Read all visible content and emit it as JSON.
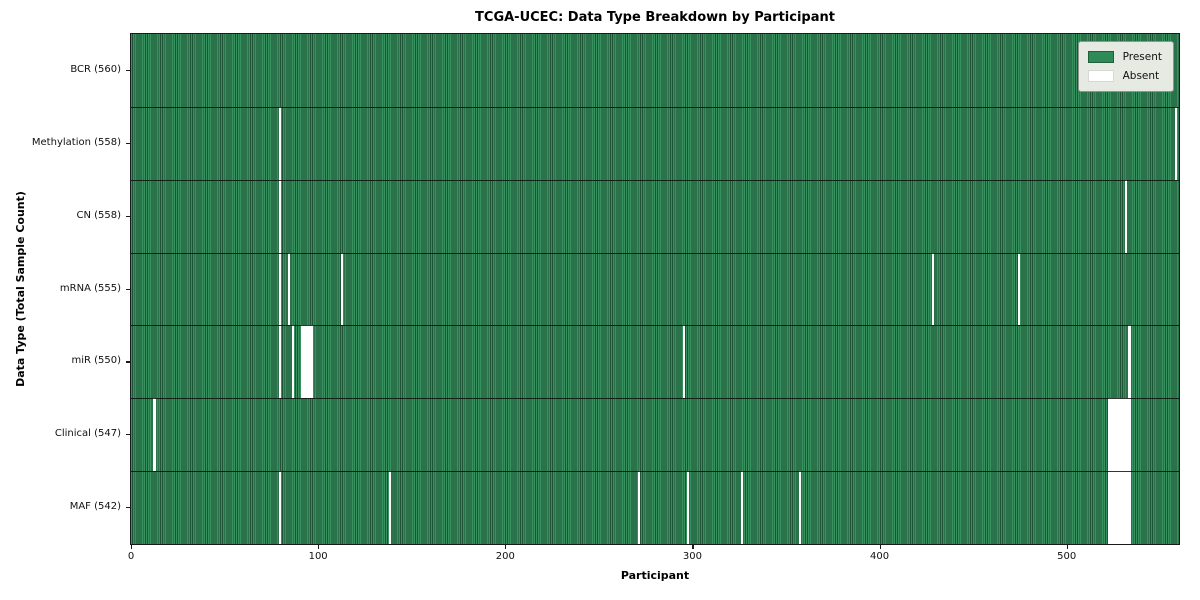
{
  "figure": {
    "title": "TCGA-UCEC: Data Type Breakdown by Participant",
    "xlabel": "Participant",
    "ylabel": "Data Type (Total Sample Count)"
  },
  "legend": {
    "present_label": "Present",
    "absent_label": "Absent",
    "present_color": "#2e8b57",
    "absent_color": "#ffffff"
  },
  "chart_data": {
    "type": "heatmap",
    "title": "TCGA-UCEC: Data Type Breakdown by Participant",
    "xlabel": "Participant",
    "ylabel": "Data Type (Total Sample Count)",
    "x_ticks": [
      0,
      100,
      200,
      300,
      400,
      500
    ],
    "x_range": [
      0,
      560
    ],
    "n_participants": 560,
    "grid": false,
    "legend_entries": [
      "Present",
      "Absent"
    ],
    "legend_position": "upper right",
    "colors": {
      "present": "#2e8b57",
      "present_dark": "#1e5335",
      "absent": "#ffffff"
    },
    "rows": [
      {
        "label": "BCR (560)",
        "data_type": "BCR",
        "present_count": 560,
        "absent_participants": []
      },
      {
        "label": "Methylation (558)",
        "data_type": "Methylation",
        "present_count": 558,
        "absent_participants": [
          79,
          558
        ]
      },
      {
        "label": "CN (558)",
        "data_type": "CN",
        "present_count": 558,
        "absent_participants": [
          79,
          531
        ]
      },
      {
        "label": "mRNA (555)",
        "data_type": "mRNA",
        "present_count": 555,
        "absent_participants": [
          79,
          84,
          112,
          428,
          474
        ]
      },
      {
        "label": "miR (550)",
        "data_type": "miR",
        "present_count": 550,
        "absent_participants": [
          79,
          86,
          91,
          92,
          93,
          94,
          95,
          96,
          295,
          533
        ]
      },
      {
        "label": "Clinical (547)",
        "data_type": "Clinical",
        "present_count": 547,
        "absent_participants": [
          12,
          522,
          523,
          524,
          525,
          526,
          527,
          528,
          529,
          530,
          531,
          532,
          533
        ]
      },
      {
        "label": "MAF (542)",
        "data_type": "MAF",
        "present_count": 542,
        "absent_participants": [
          79,
          138,
          271,
          297,
          326,
          357,
          522,
          523,
          524,
          525,
          526,
          527,
          528,
          529,
          530,
          531,
          532,
          533
        ]
      }
    ]
  }
}
